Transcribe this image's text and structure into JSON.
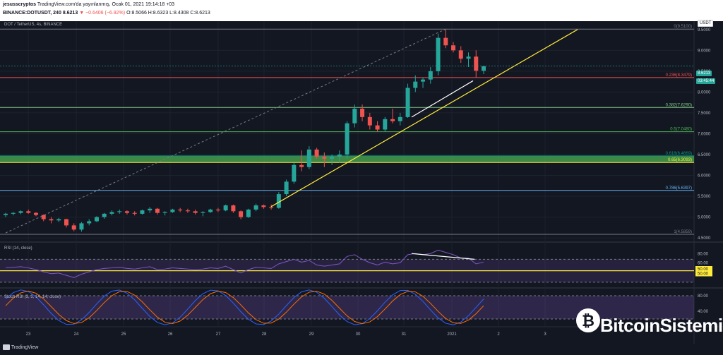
{
  "header": {
    "author": "jesusscryptos",
    "published_text": "TradingView.com'da yayınlanmış, Ocak 01, 2021 19:14:18 +03",
    "symbol_line": "BINANCE:DOTUSDT, 240",
    "last": "8.6213",
    "change": "▼ −0.6406 (−6.92%)",
    "ohlc": "O:8.5066 H:8.6323 L:8.4308 C:8.6213"
  },
  "chart": {
    "symbol_label": "DOT / TetherUS, 4s, BINANCE",
    "currency_button": "USDT",
    "current_price": "8.6213",
    "countdown": "03:45:44",
    "price_axis": [
      "9.5000",
      "9.0000",
      "8.5000",
      "8.0000",
      "7.5000",
      "7.0000",
      "6.5000",
      "6.0000",
      "5.5000",
      "5.0000",
      "4.5000"
    ],
    "time_axis": [
      "23",
      "24",
      "25",
      "26",
      "27",
      "28",
      "29",
      "30",
      "31",
      "2021",
      "2",
      "3"
    ],
    "fib_levels": [
      {
        "label": "0(9.5100)",
        "color": "#787b86"
      },
      {
        "label": "0.236(8.3479)",
        "color": "#ef5350"
      },
      {
        "label": "0.382(7.6290)",
        "color": "#81c784"
      },
      {
        "label": "0.5(7.0480)",
        "color": "#4caf50"
      },
      {
        "label": "0.618(6.4669)",
        "color": "#089981"
      },
      {
        "label": "0.65(6.3093)",
        "color": "#ffeb3b"
      },
      {
        "label": "0.786(5.6397)",
        "color": "#64b5f6"
      },
      {
        "label": "1(4.5859)",
        "color": "#787b86"
      }
    ]
  },
  "rsi": {
    "title": "RSI (14, close)",
    "axis": [
      "80.00",
      "60.00",
      "50.00",
      "50.00"
    ]
  },
  "stoch": {
    "title": "Stoch RSI (3, 3, 14, 14, close)",
    "axis": [
      "80.00",
      "40.00"
    ]
  },
  "footer": {
    "tradingview": "TradingView"
  },
  "watermark": {
    "brand": "BitcoinSistemi"
  },
  "chart_data": {
    "type": "candlestick",
    "symbol": "DOTUSDT",
    "interval": "240",
    "ylim": [
      4.4,
      9.7
    ],
    "x_ticks": [
      "23",
      "24",
      "25",
      "26",
      "27",
      "28",
      "29",
      "30",
      "31",
      "2021",
      "2",
      "3"
    ],
    "candles": [
      [
        5.05,
        5.1,
        5.0,
        5.08
      ],
      [
        5.08,
        5.12,
        5.04,
        5.1
      ],
      [
        5.1,
        5.16,
        5.07,
        5.14
      ],
      [
        5.14,
        5.18,
        5.08,
        5.1
      ],
      [
        5.1,
        5.12,
        5.02,
        5.05
      ],
      [
        5.05,
        5.06,
        4.9,
        4.95
      ],
      [
        4.95,
        5.0,
        4.85,
        4.92
      ],
      [
        4.92,
        4.98,
        4.88,
        4.95
      ],
      [
        4.95,
        4.96,
        4.75,
        4.8
      ],
      [
        4.8,
        4.85,
        4.66,
        4.7
      ],
      [
        4.7,
        4.88,
        4.65,
        4.85
      ],
      [
        4.85,
        4.95,
        4.8,
        4.9
      ],
      [
        4.9,
        5.02,
        4.88,
        5.0
      ],
      [
        5.0,
        5.1,
        4.96,
        5.08
      ],
      [
        5.08,
        5.16,
        5.04,
        5.12
      ],
      [
        5.12,
        5.18,
        5.08,
        5.14
      ],
      [
        5.14,
        5.16,
        5.06,
        5.1
      ],
      [
        5.1,
        5.14,
        5.04,
        5.08
      ],
      [
        5.08,
        5.18,
        5.06,
        5.16
      ],
      [
        5.16,
        5.24,
        5.1,
        5.2
      ],
      [
        5.2,
        5.22,
        5.06,
        5.1
      ],
      [
        5.1,
        5.14,
        5.04,
        5.12
      ],
      [
        5.12,
        5.2,
        5.1,
        5.18
      ],
      [
        5.18,
        5.22,
        5.12,
        5.16
      ],
      [
        5.16,
        5.2,
        5.1,
        5.14
      ],
      [
        5.14,
        5.18,
        5.06,
        5.1
      ],
      [
        5.1,
        5.14,
        5.02,
        5.12
      ],
      [
        5.12,
        5.2,
        5.1,
        5.18
      ],
      [
        5.18,
        5.22,
        5.12,
        5.16
      ],
      [
        5.16,
        5.3,
        5.14,
        5.28
      ],
      [
        5.28,
        5.3,
        5.1,
        5.14
      ],
      [
        5.14,
        5.16,
        4.95,
        5.0
      ],
      [
        5.0,
        5.2,
        4.98,
        5.18
      ],
      [
        5.18,
        5.32,
        5.14,
        5.28
      ],
      [
        5.28,
        5.3,
        5.2,
        5.24
      ],
      [
        5.24,
        5.3,
        5.18,
        5.22
      ],
      [
        5.22,
        5.6,
        5.2,
        5.55
      ],
      [
        5.55,
        5.9,
        5.5,
        5.85
      ],
      [
        5.85,
        6.3,
        5.8,
        6.25
      ],
      [
        6.25,
        6.6,
        6.1,
        6.2
      ],
      [
        6.2,
        6.7,
        6.15,
        6.62
      ],
      [
        6.62,
        6.66,
        6.4,
        6.45
      ],
      [
        6.45,
        6.55,
        6.2,
        6.4
      ],
      [
        6.4,
        6.5,
        6.25,
        6.45
      ],
      [
        6.45,
        6.6,
        6.3,
        6.5
      ],
      [
        6.5,
        7.3,
        6.4,
        7.25
      ],
      [
        7.25,
        7.7,
        7.15,
        7.6
      ],
      [
        7.6,
        7.7,
        7.3,
        7.4
      ],
      [
        7.4,
        7.5,
        7.1,
        7.2
      ],
      [
        7.2,
        7.3,
        7.05,
        7.1
      ],
      [
        7.1,
        7.4,
        7.05,
        7.35
      ],
      [
        7.35,
        7.6,
        7.25,
        7.3
      ],
      [
        7.3,
        7.5,
        7.2,
        7.4
      ],
      [
        7.4,
        8.2,
        7.38,
        8.1
      ],
      [
        8.1,
        8.4,
        8.0,
        8.25
      ],
      [
        8.25,
        8.35,
        8.1,
        8.3
      ],
      [
        8.3,
        8.6,
        8.2,
        8.5
      ],
      [
        8.5,
        9.4,
        8.4,
        9.3
      ],
      [
        9.3,
        9.51,
        9.05,
        9.12
      ],
      [
        9.12,
        9.2,
        8.95,
        9.0
      ],
      [
        9.0,
        9.1,
        8.7,
        8.8
      ],
      [
        8.8,
        8.95,
        8.6,
        8.85
      ],
      [
        8.85,
        9.0,
        8.35,
        8.51
      ],
      [
        8.51,
        8.63,
        8.43,
        8.62
      ]
    ]
  }
}
